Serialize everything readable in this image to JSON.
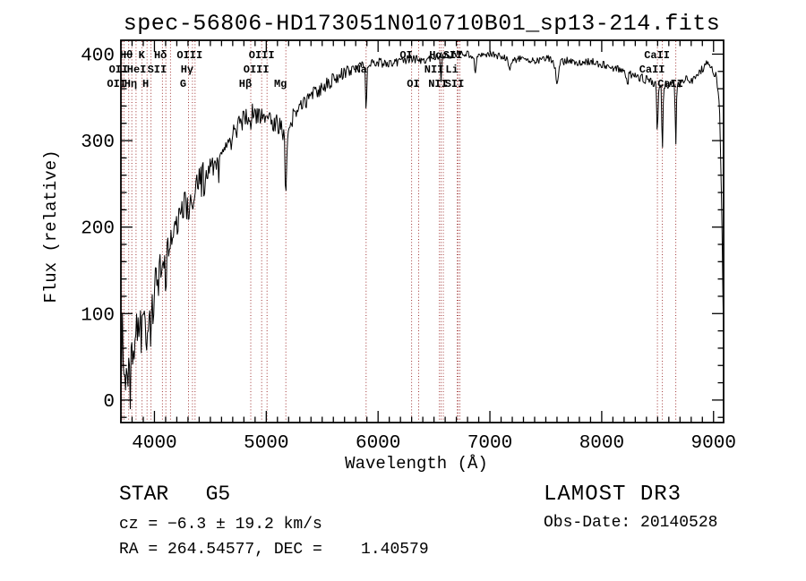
{
  "title": "spec-56806-HD173051N010710B01_sp13-214.fits",
  "footer": {
    "left": {
      "class_label": "STAR   G5",
      "cz": "cz = −6.3 ± 19.2 km/s",
      "radec": "RA = 264.54577, DEC =    1.40579"
    },
    "right": {
      "survey": "LAMOST DR3",
      "obs_date": "Obs-Date: 20140528"
    }
  },
  "chart_data": {
    "type": "line",
    "title": "spec-56806-HD173051N010710B01_sp13-214.fits",
    "xlabel": "Wavelength (Å)",
    "ylabel": "Flux (relative)",
    "xlim": [
      3700,
      9090
    ],
    "ylim": [
      -26,
      416
    ],
    "x_ticks": [
      4000,
      5000,
      6000,
      7000,
      8000,
      9000
    ],
    "x_minor_step": 100,
    "y_ticks": [
      0,
      100,
      200,
      300,
      400
    ],
    "y_minor_step": 20,
    "grid": false,
    "legend": "none",
    "trace_color": "#000000",
    "marker_line_color": "#a03333",
    "spectral_line_wavelengths": [
      3710,
      3727,
      3770,
      3798,
      3835,
      3889,
      3934,
      3969,
      4072,
      4102,
      4144,
      4305,
      4340,
      4363,
      4861,
      4959,
      5007,
      5175,
      5893,
      6300,
      6363,
      6548,
      6563,
      6583,
      6708,
      6716,
      6731,
      8498,
      8542,
      8662
    ],
    "line_labels": [
      {
        "text": "Hθ",
        "wavelength": 3798,
        "row": 1
      },
      {
        "text": "K",
        "wavelength": 3934,
        "row": 1
      },
      {
        "text": "Hδ",
        "wavelength": 4102,
        "row": 1
      },
      {
        "text": "OIII",
        "wavelength": 4363,
        "row": 1
      },
      {
        "text": "OIII",
        "wavelength": 5007,
        "row": 1
      },
      {
        "text": "OI",
        "wavelength": 6300,
        "row": 1
      },
      {
        "text": "Hα",
        "wavelength": 6563,
        "row": 1
      },
      {
        "text": "SII",
        "wavelength": 6716,
        "row": 1
      },
      {
        "text": "CaII",
        "wavelength": 8542,
        "row": 1
      },
      {
        "text": "OII",
        "wavelength": 3727,
        "row": 2
      },
      {
        "text": "HeI",
        "wavelength": 3889,
        "row": 2
      },
      {
        "text": "SII",
        "wavelength": 4072,
        "row": 2
      },
      {
        "text": "Hγ",
        "wavelength": 4340,
        "row": 2
      },
      {
        "text": "OIII",
        "wavelength": 4959,
        "row": 2
      },
      {
        "text": "Na",
        "wavelength": 5893,
        "row": 2
      },
      {
        "text": "NII",
        "wavelength": 6548,
        "row": 2
      },
      {
        "text": "Li",
        "wavelength": 6708,
        "row": 2
      },
      {
        "text": "CaII",
        "wavelength": 8498,
        "row": 2
      },
      {
        "text": "OII",
        "wavelength": 3710,
        "row": 3
      },
      {
        "text": "Hη",
        "wavelength": 3835,
        "row": 3
      },
      {
        "text": "H",
        "wavelength": 3969,
        "row": 3
      },
      {
        "text": "G",
        "wavelength": 4305,
        "row": 3
      },
      {
        "text": "Hβ",
        "wavelength": 4861,
        "row": 3
      },
      {
        "text": "Mg",
        "wavelength": 5175,
        "row": 3
      },
      {
        "text": "OI",
        "wavelength": 6363,
        "row": 3
      },
      {
        "text": "NII",
        "wavelength": 6583,
        "row": 3
      },
      {
        "text": "SII",
        "wavelength": 6731,
        "row": 3
      },
      {
        "text": "CaII",
        "wavelength": 8662,
        "row": 3
      }
    ],
    "continuum_points": [
      [
        3700,
        10
      ],
      [
        3706,
        30
      ],
      [
        3714,
        115
      ],
      [
        3722,
        35
      ],
      [
        3730,
        8
      ],
      [
        3740,
        30
      ],
      [
        3748,
        12
      ],
      [
        3758,
        35
      ],
      [
        3766,
        22
      ],
      [
        3775,
        55
      ],
      [
        3785,
        40
      ],
      [
        3800,
        60
      ],
      [
        3815,
        50
      ],
      [
        3830,
        70
      ],
      [
        3845,
        80
      ],
      [
        3860,
        75
      ],
      [
        3880,
        90
      ],
      [
        3900,
        100
      ],
      [
        3925,
        95
      ],
      [
        3950,
        105
      ],
      [
        3975,
        115
      ],
      [
        4000,
        135
      ],
      [
        4050,
        152
      ],
      [
        4100,
        165
      ],
      [
        4150,
        185
      ],
      [
        4200,
        205
      ],
      [
        4250,
        222
      ],
      [
        4300,
        235
      ],
      [
        4350,
        242
      ],
      [
        4400,
        255
      ],
      [
        4450,
        263
      ],
      [
        4500,
        270
      ],
      [
        4550,
        276
      ],
      [
        4600,
        285
      ],
      [
        4650,
        295
      ],
      [
        4700,
        305
      ],
      [
        4750,
        315
      ],
      [
        4800,
        325
      ],
      [
        4850,
        331
      ],
      [
        4900,
        332
      ],
      [
        4950,
        330
      ],
      [
        5000,
        326
      ],
      [
        5050,
        321
      ],
      [
        5100,
        319
      ],
      [
        5150,
        311
      ],
      [
        5200,
        316
      ],
      [
        5250,
        330
      ],
      [
        5300,
        340
      ],
      [
        5350,
        346
      ],
      [
        5400,
        351
      ],
      [
        5500,
        361
      ],
      [
        5600,
        371
      ],
      [
        5700,
        378
      ],
      [
        5800,
        385
      ],
      [
        5900,
        390
      ],
      [
        6000,
        390
      ],
      [
        6100,
        388
      ],
      [
        6200,
        392
      ],
      [
        6300,
        395
      ],
      [
        6400,
        392
      ],
      [
        6500,
        396
      ],
      [
        6600,
        398
      ],
      [
        6700,
        400
      ],
      [
        6800,
        400
      ],
      [
        6900,
        397
      ],
      [
        7000,
        400
      ],
      [
        7100,
        397
      ],
      [
        7200,
        392
      ],
      [
        7300,
        396
      ],
      [
        7400,
        392
      ],
      [
        7500,
        396
      ],
      [
        7600,
        389
      ],
      [
        7700,
        393
      ],
      [
        7800,
        389
      ],
      [
        7900,
        392
      ],
      [
        8000,
        388
      ],
      [
        8100,
        384
      ],
      [
        8200,
        380
      ],
      [
        8300,
        375
      ],
      [
        8400,
        370
      ],
      [
        8460,
        367
      ],
      [
        8530,
        364
      ],
      [
        8620,
        366
      ],
      [
        8700,
        365
      ],
      [
        8760,
        372
      ],
      [
        8820,
        369
      ],
      [
        8880,
        380
      ],
      [
        8940,
        390
      ],
      [
        8990,
        384
      ],
      [
        9030,
        372
      ],
      [
        9055,
        330
      ],
      [
        9075,
        210
      ],
      [
        9090,
        70
      ]
    ],
    "absorption_features": [
      [
        3934,
        42,
        7
      ],
      [
        3969,
        38,
        7
      ],
      [
        4102,
        28,
        6
      ],
      [
        4305,
        24,
        9
      ],
      [
        4340,
        20,
        6
      ],
      [
        4861,
        30,
        6
      ],
      [
        5175,
        85,
        7
      ],
      [
        5893,
        55,
        5
      ],
      [
        6563,
        30,
        5
      ],
      [
        6870,
        16,
        9
      ],
      [
        7180,
        12,
        9
      ],
      [
        7600,
        20,
        12
      ],
      [
        8230,
        10,
        9
      ],
      [
        8498,
        60,
        5
      ],
      [
        8542,
        76,
        5
      ],
      [
        8662,
        70,
        5
      ]
    ],
    "noise_profile": [
      [
        3700,
        30
      ],
      [
        3800,
        25
      ],
      [
        3900,
        21
      ],
      [
        4000,
        18
      ],
      [
        4200,
        16
      ],
      [
        4400,
        15
      ],
      [
        4600,
        14
      ],
      [
        4800,
        13
      ],
      [
        5000,
        12
      ],
      [
        5200,
        10
      ],
      [
        5400,
        9
      ],
      [
        5600,
        8
      ],
      [
        5800,
        7
      ],
      [
        6000,
        6
      ],
      [
        6300,
        5
      ],
      [
        6600,
        4.5
      ],
      [
        7000,
        4
      ],
      [
        7600,
        4.5
      ],
      [
        8000,
        4.5
      ],
      [
        8400,
        5.5
      ],
      [
        8700,
        5
      ],
      [
        9000,
        5
      ],
      [
        9090,
        8
      ]
    ],
    "noise": {
      "seed": 20140528,
      "sample_step_angstrom": 7,
      "spike_probability": 0.15,
      "spike_scale": 1.6,
      "spike_max_wavelength": 4700
    }
  }
}
